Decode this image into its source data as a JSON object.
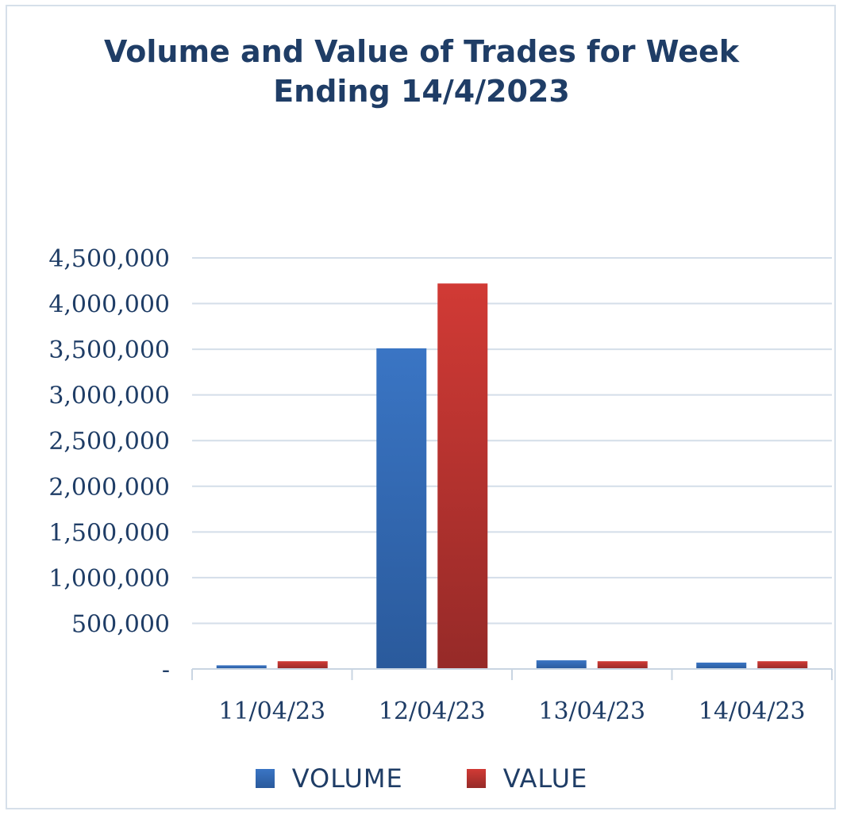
{
  "chart_data": {
    "type": "bar",
    "title": "Volume and Value of Trades for Week Ending 14/4/2023",
    "title_lines": [
      "Volume and Value of Trades for Week",
      "Ending 14/4/2023"
    ],
    "categories": [
      "11/04/23",
      "12/04/23",
      "13/04/23",
      "14/04/23"
    ],
    "series": [
      {
        "name": "VOLUME",
        "color": "#3a75c4",
        "color_dark": "#2a5a9c",
        "values": [
          40000,
          3510000,
          95000,
          70000
        ]
      },
      {
        "name": "VALUE",
        "color": "#d13a35",
        "color_dark": "#962a28",
        "values": [
          85000,
          4220000,
          85000,
          85000
        ]
      }
    ],
    "ylim": [
      0,
      4500000
    ],
    "yticks": [
      0,
      500000,
      1000000,
      1500000,
      2000000,
      2500000,
      3000000,
      3500000,
      4000000,
      4500000
    ],
    "ytick_labels": [
      "-",
      "500,000",
      "1,000,000",
      "1,500,000",
      "2,000,000",
      "2,500,000",
      "3,000,000",
      "3,500,000",
      "4,000,000",
      "4,500,000"
    ],
    "xlabel": "",
    "ylabel": "",
    "grid": true,
    "legend_position": "bottom"
  }
}
